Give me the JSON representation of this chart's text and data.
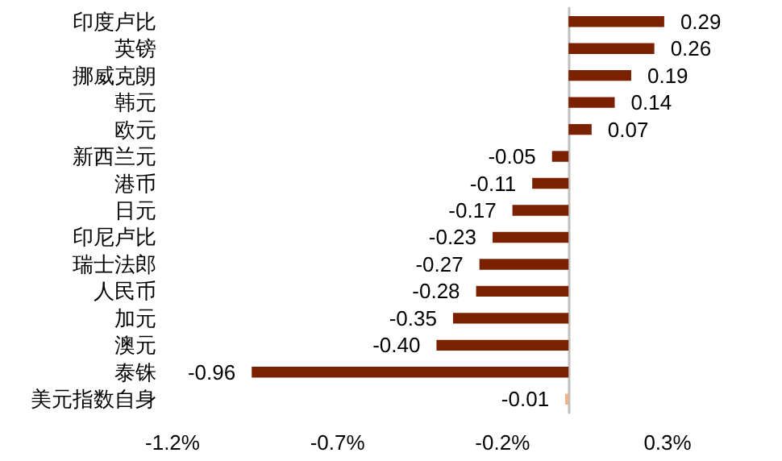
{
  "chart_data": {
    "type": "bar",
    "orientation": "horizontal",
    "categories": [
      "印度卢比",
      "英镑",
      "挪威克朗",
      "韩元",
      "欧元",
      "新西兰元",
      "港币",
      "日元",
      "印尼卢比",
      "瑞士法郎",
      "人民币",
      "加元",
      "澳元",
      "泰铢",
      "美元指数自身"
    ],
    "values": [
      0.29,
      0.26,
      0.19,
      0.14,
      0.07,
      -0.05,
      -0.11,
      -0.17,
      -0.23,
      -0.27,
      -0.28,
      -0.35,
      -0.4,
      -0.96,
      -0.01
    ],
    "value_labels": [
      "0.29",
      "0.26",
      "0.19",
      "0.14",
      "0.07",
      "-0.05",
      "-0.11",
      "-0.17",
      "-0.23",
      "-0.27",
      "-0.28",
      "-0.35",
      "-0.40",
      "-0.96",
      "-0.01"
    ],
    "colors": [
      "#7b2100",
      "#7b2100",
      "#7b2100",
      "#7b2100",
      "#7b2100",
      "#7b2100",
      "#7b2100",
      "#7b2100",
      "#7b2100",
      "#7b2100",
      "#7b2100",
      "#7b2100",
      "#7b2100",
      "#7b2100",
      "#f4b183"
    ],
    "xlim": [
      -1.2,
      0.3
    ],
    "xticks": [
      {
        "value": -1.2,
        "label": "-1.2%"
      },
      {
        "value": -0.7,
        "label": "-0.7%"
      },
      {
        "value": -0.2,
        "label": "-0.2%"
      },
      {
        "value": 0.3,
        "label": "0.3%"
      }
    ],
    "grid": false
  }
}
